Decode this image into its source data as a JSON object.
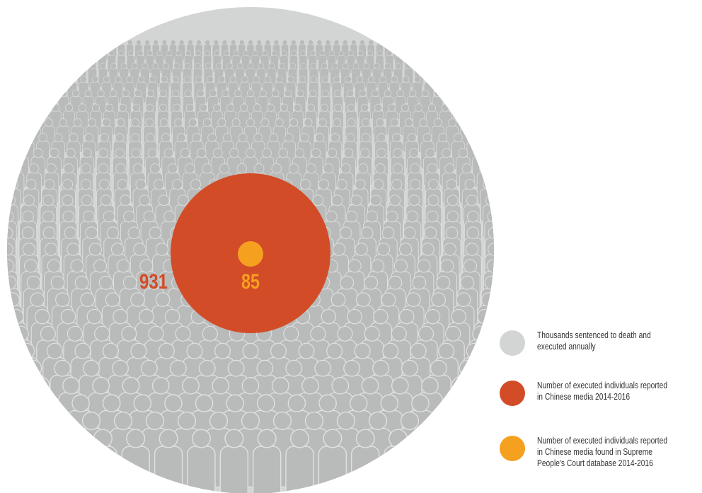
{
  "chart_data": {
    "type": "proportional-circles",
    "series": [
      {
        "label": "Thousands sentenced to death and executed annually",
        "color": "#d3d5d4"
      },
      {
        "label": "Number of executed individuals reported in Chinese media 2014-2016",
        "value": 931,
        "display": "931",
        "color": "#d24c27"
      },
      {
        "label": "Number of executed individuals reported in Chinese media found in Supreme People's Court database 2014-2016",
        "value": 85,
        "display": "85",
        "color": "#f6a020"
      }
    ]
  }
}
